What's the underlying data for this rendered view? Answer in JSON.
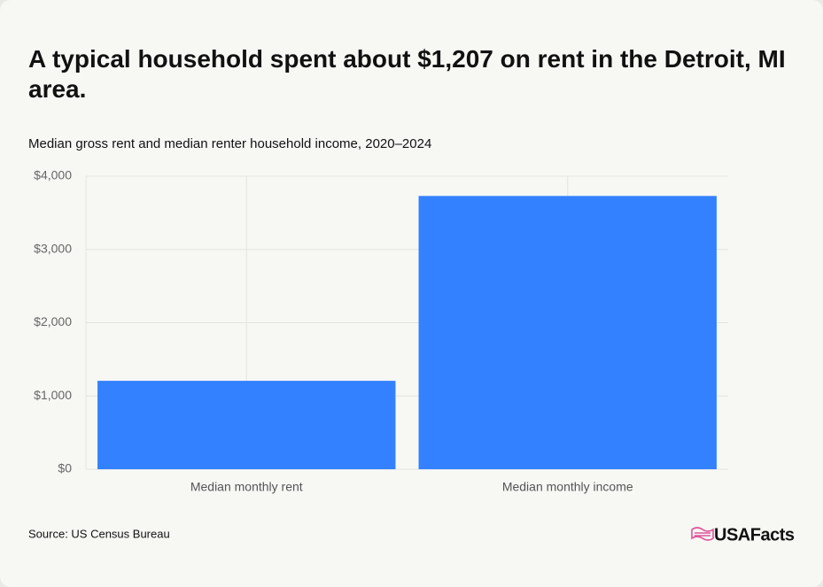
{
  "chart_data": {
    "type": "bar",
    "title": "A typical household spent about $1,207 on rent in the Detroit, MI area.",
    "subtitle": "Median gross rent and median renter household income, 2020–2024",
    "categories": [
      "Median monthly rent",
      "Median monthly income"
    ],
    "values": [
      1207,
      3730
    ],
    "color": "#3381ff",
    "ylim": [
      0,
      4000
    ],
    "yticks": [
      {
        "value": 0,
        "label": "$0"
      },
      {
        "value": 1000,
        "label": "$1,000"
      },
      {
        "value": 2000,
        "label": "$2,000"
      },
      {
        "value": 3000,
        "label": "$3,000"
      },
      {
        "value": 4000,
        "label": "$4,000"
      }
    ],
    "grid": true,
    "source": "Source: US Census Bureau",
    "logo": "USAFacts"
  }
}
